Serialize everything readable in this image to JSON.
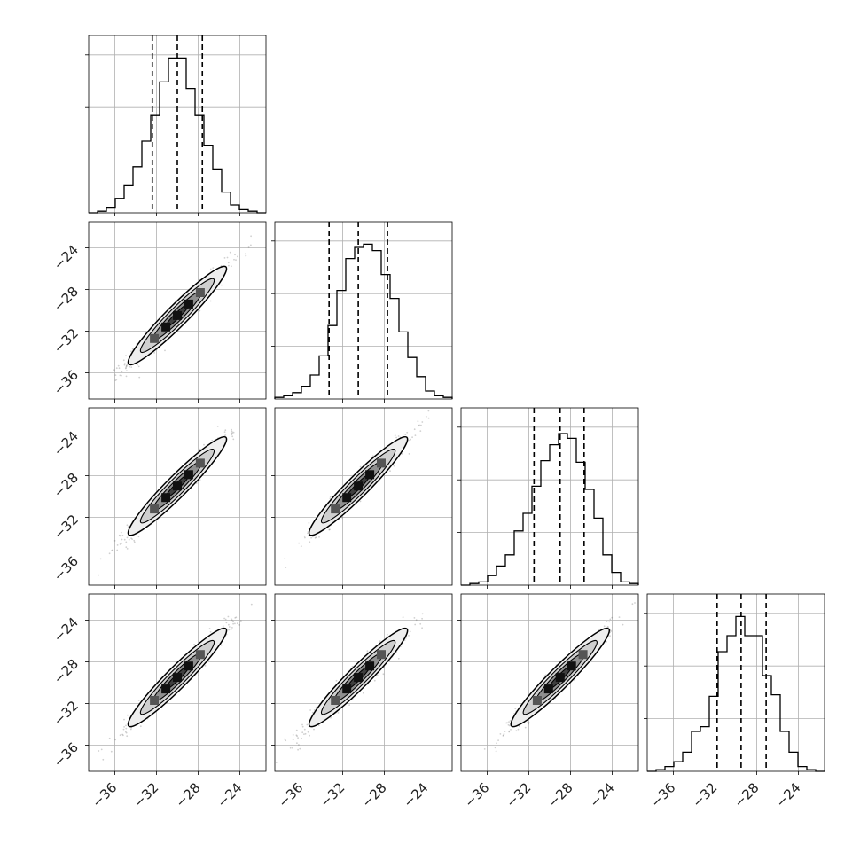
{
  "chart_data": {
    "type": "corner",
    "n_params": 4,
    "axis_range": [
      -38.5,
      -21.5
    ],
    "ticks": [
      -36,
      -32,
      -28,
      -24
    ],
    "tick_labels": [
      "−36",
      "−32",
      "−28",
      "−24"
    ],
    "grid": true,
    "parameters": [
      {
        "median": -30.0,
        "q16": -32.4,
        "q84": -27.6,
        "histogram": {
          "bin_edges": [
            -38.5,
            -37.65,
            -36.8,
            -35.95,
            -35.1,
            -34.25,
            -33.4,
            -32.55,
            -31.7,
            -30.85,
            -30.0,
            -29.15,
            -28.3,
            -27.45,
            -26.6,
            -25.75,
            -24.9,
            -24.05,
            -23.2,
            -22.35,
            -21.5
          ],
          "relative_counts": [
            0.0,
            0.01,
            0.03,
            0.09,
            0.17,
            0.29,
            0.45,
            0.61,
            0.82,
            0.97,
            0.97,
            0.78,
            0.61,
            0.42,
            0.27,
            0.13,
            0.05,
            0.02,
            0.01,
            0.0
          ]
        }
      },
      {
        "median": -30.5,
        "q16": -33.3,
        "q84": -27.7,
        "histogram": {
          "bin_edges": [
            -38.5,
            -37.65,
            -36.8,
            -35.95,
            -35.1,
            -34.25,
            -33.4,
            -32.55,
            -31.7,
            -30.85,
            -30.0,
            -29.15,
            -28.3,
            -27.45,
            -26.6,
            -25.75,
            -24.9,
            -24.05,
            -23.2,
            -22.35,
            -21.5
          ],
          "relative_counts": [
            0.01,
            0.02,
            0.04,
            0.08,
            0.15,
            0.27,
            0.46,
            0.68,
            0.88,
            0.95,
            0.97,
            0.93,
            0.78,
            0.63,
            0.42,
            0.26,
            0.14,
            0.05,
            0.02,
            0.01
          ]
        }
      },
      {
        "median": -29.0,
        "q16": -31.5,
        "q84": -26.7,
        "histogram": {
          "bin_edges": [
            -38.5,
            -37.65,
            -36.8,
            -35.95,
            -35.1,
            -34.25,
            -33.4,
            -32.55,
            -31.7,
            -30.85,
            -30.0,
            -29.15,
            -28.3,
            -27.45,
            -26.6,
            -25.75,
            -24.9,
            -24.05,
            -23.2,
            -22.35,
            -21.5
          ],
          "relative_counts": [
            0.0,
            0.01,
            0.02,
            0.06,
            0.12,
            0.19,
            0.34,
            0.45,
            0.62,
            0.78,
            0.88,
            0.95,
            0.92,
            0.77,
            0.6,
            0.42,
            0.19,
            0.08,
            0.02,
            0.01
          ]
        }
      },
      {
        "median": -29.5,
        "q16": -31.8,
        "q84": -27.1,
        "histogram": {
          "bin_edges": [
            -38.5,
            -37.65,
            -36.8,
            -35.95,
            -35.1,
            -34.25,
            -33.4,
            -32.55,
            -31.7,
            -30.85,
            -30.0,
            -29.15,
            -28.3,
            -27.45,
            -26.6,
            -25.75,
            -24.9,
            -24.05,
            -23.2,
            -22.35,
            -21.5
          ],
          "relative_counts": [
            0.0,
            0.01,
            0.03,
            0.06,
            0.12,
            0.25,
            0.28,
            0.47,
            0.75,
            0.85,
            0.97,
            0.85,
            0.85,
            0.6,
            0.48,
            0.25,
            0.12,
            0.03,
            0.01,
            0.0
          ]
        }
      }
    ],
    "pairs": [
      {
        "row": 1,
        "col": 0,
        "center": [
          -30.0,
          -30.5
        ],
        "correlation": 0.97
      },
      {
        "row": 2,
        "col": 0,
        "center": [
          -30.0,
          -29.0
        ],
        "correlation": 0.97
      },
      {
        "row": 2,
        "col": 1,
        "center": [
          -30.5,
          -29.0
        ],
        "correlation": 0.97
      },
      {
        "row": 3,
        "col": 0,
        "center": [
          -30.0,
          -29.5
        ],
        "correlation": 0.97
      },
      {
        "row": 3,
        "col": 1,
        "center": [
          -30.5,
          -29.5
        ],
        "correlation": 0.97
      },
      {
        "row": 3,
        "col": 2,
        "center": [
          -29.0,
          -29.5
        ],
        "correlation": 0.97
      }
    ],
    "contour_levels_sigma": [
      0.5,
      1.0,
      1.5,
      2.0
    ],
    "colors": {
      "line": "#000000",
      "points": "#555555",
      "grid": "#b0b0b0"
    }
  }
}
